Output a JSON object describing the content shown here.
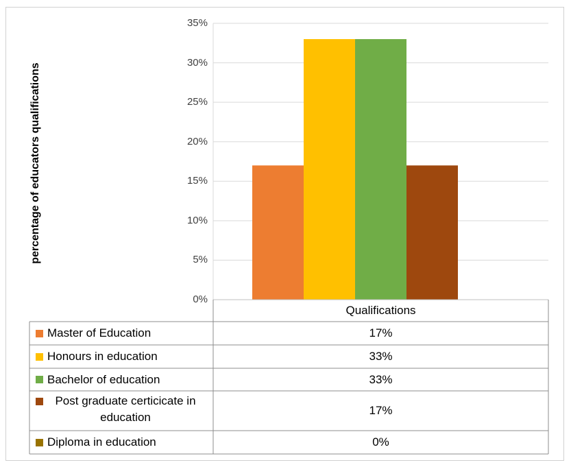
{
  "chart_data": {
    "type": "bar",
    "title": "",
    "xlabel": "Qualifications",
    "ylabel": "percentage of educators qualifications",
    "categories": [
      "Qualifications"
    ],
    "ylim": [
      0,
      35
    ],
    "yticks": [
      "0%",
      "5%",
      "10%",
      "15%",
      "20%",
      "25%",
      "30%",
      "35%"
    ],
    "grid": true,
    "legend_placement": "data-table-below",
    "series": [
      {
        "name": "Master of Education",
        "values": [
          17
        ],
        "label": "17%",
        "color": "#ED7D31"
      },
      {
        "name": "Honours in education",
        "values": [
          33
        ],
        "label": "33%",
        "color": "#FFC000"
      },
      {
        "name": "Bachelor of education",
        "values": [
          33
        ],
        "label": "33%",
        "color": "#70AD47"
      },
      {
        "name": "Post graduate certicicate in education",
        "values": [
          17
        ],
        "label": "17%",
        "color": "#9E480E"
      },
      {
        "name": "Diploma in education",
        "values": [
          0
        ],
        "label": "0%",
        "color": "#997300"
      }
    ]
  }
}
